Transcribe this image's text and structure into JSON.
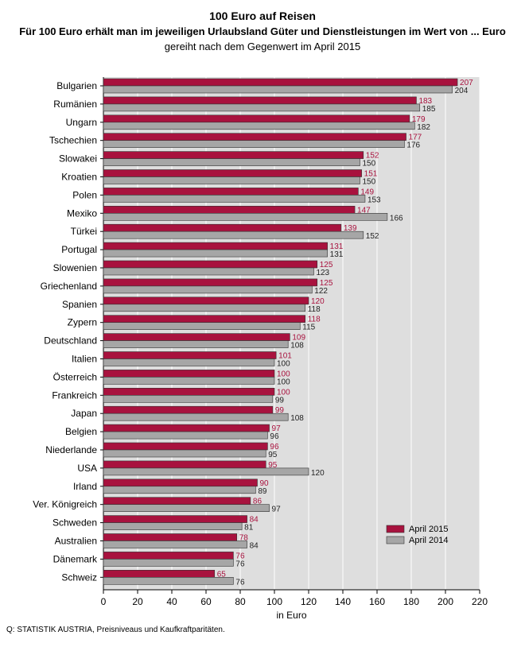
{
  "chart_data": {
    "type": "bar",
    "orientation": "horizontal",
    "title": "100 Euro auf Reisen",
    "subtitle": "Für 100 Euro erhält man im jeweiligen Urlaubsland Güter und Dienstleistungen im Wert von ... Euro",
    "subtitle2": "gereiht nach dem Gegenwert im April 2015",
    "xlabel": "in Euro",
    "xlim": [
      0,
      220
    ],
    "xticks": [
      "0",
      "20",
      "40",
      "60",
      "80",
      "100",
      "120",
      "140",
      "160",
      "180",
      "200",
      "220"
    ],
    "categories": [
      "Bulgarien",
      "Rumänien",
      "Ungarn",
      "Tschechien",
      "Slowakei",
      "Kroatien",
      "Polen",
      "Mexiko",
      "Türkei",
      "Portugal",
      "Slowenien",
      "Griechenland",
      "Spanien",
      "Zypern",
      "Deutschland",
      "Italien",
      "Österreich",
      "Frankreich",
      "Japan",
      "Belgien",
      "Niederlande",
      "USA",
      "Irland",
      "Ver. Königreich",
      "Schweden",
      "Australien",
      "Dänemark",
      "Schweiz"
    ],
    "series": [
      {
        "name": "April 2015",
        "color": "#a8123e",
        "label_color": "#a8123e",
        "values": [
          207,
          183,
          179,
          177,
          152,
          151,
          149,
          147,
          139,
          131,
          125,
          125,
          120,
          118,
          109,
          101,
          100,
          100,
          99,
          97,
          96,
          95,
          90,
          86,
          84,
          78,
          76,
          65
        ]
      },
      {
        "name": "April 2014",
        "color": "#a6a6a6",
        "label_color": "#222222",
        "values": [
          204,
          185,
          182,
          176,
          150,
          150,
          153,
          166,
          152,
          131,
          123,
          122,
          118,
          115,
          108,
          100,
          100,
          99,
          108,
          96,
          95,
          120,
          89,
          97,
          81,
          84,
          76,
          76
        ]
      }
    ],
    "legend": "bottom-right",
    "background_color": "#dedede"
  },
  "source": "Q: STATISTIK AUSTRIA, Preisniveaus und Kaufkraftparitäten."
}
